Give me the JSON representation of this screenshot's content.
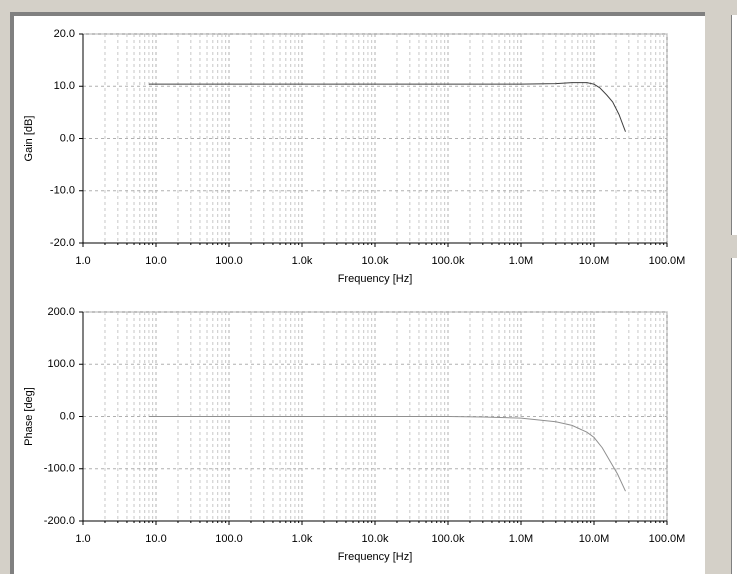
{
  "chart_data": [
    {
      "type": "line",
      "xscale": "log",
      "ylabel": "Gain [dB]",
      "xlabel": "Frequency [Hz]",
      "color": "#404040",
      "grid": true,
      "minor_grid": true,
      "x": [
        8,
        100,
        1000,
        10000,
        100000,
        1000000,
        3000000,
        5000000,
        8000000,
        10000000,
        12000000,
        15000000,
        18000000,
        22000000,
        27000000
      ],
      "values": [
        10.4,
        10.4,
        10.4,
        10.4,
        10.4,
        10.4,
        10.5,
        10.7,
        10.7,
        10.4,
        9.7,
        8.3,
        7.0,
        4.6,
        1.3
      ],
      "xlim": [
        1,
        100000000
      ],
      "xticks": [
        {
          "value": 1,
          "label": "1.0"
        },
        {
          "value": 10,
          "label": "10.0"
        },
        {
          "value": 100,
          "label": "100.0"
        },
        {
          "value": 1000,
          "label": "1.0k"
        },
        {
          "value": 10000,
          "label": "10.0k"
        },
        {
          "value": 100000,
          "label": "100.0k"
        },
        {
          "value": 1000000,
          "label": "1.0M"
        },
        {
          "value": 10000000,
          "label": "10.0M"
        },
        {
          "value": 100000000,
          "label": "100.0M"
        }
      ],
      "ylim": [
        -20,
        20
      ],
      "yticks": [
        {
          "value": -20,
          "label": "-20.0"
        },
        {
          "value": -10,
          "label": "-10.0"
        },
        {
          "value": 0,
          "label": "0.0"
        },
        {
          "value": 10,
          "label": "10.0"
        },
        {
          "value": 20,
          "label": "20.0"
        }
      ]
    },
    {
      "type": "line",
      "xscale": "log",
      "ylabel": "Phase [deg]",
      "xlabel": "Frequency [Hz]",
      "color": "#909090",
      "grid": true,
      "minor_grid": true,
      "x": [
        8,
        100,
        1000,
        10000,
        100000,
        300000,
        1000000,
        3000000,
        5000000,
        8000000,
        10000000,
        13000000,
        17000000,
        21000000,
        27000000
      ],
      "values": [
        0,
        0,
        0,
        0,
        0,
        -1,
        -3,
        -10,
        -17,
        -30,
        -40,
        -60,
        -88,
        -110,
        -143
      ],
      "xlim": [
        1,
        100000000
      ],
      "xticks": [
        {
          "value": 1,
          "label": "1.0"
        },
        {
          "value": 10,
          "label": "10.0"
        },
        {
          "value": 100,
          "label": "100.0"
        },
        {
          "value": 1000,
          "label": "1.0k"
        },
        {
          "value": 10000,
          "label": "10.0k"
        },
        {
          "value": 100000,
          "label": "100.0k"
        },
        {
          "value": 1000000,
          "label": "1.0M"
        },
        {
          "value": 10000000,
          "label": "10.0M"
        },
        {
          "value": 100000000,
          "label": "100.0M"
        }
      ],
      "ylim": [
        -200,
        200
      ],
      "yticks": [
        {
          "value": -200,
          "label": "-200.0"
        },
        {
          "value": -100,
          "label": "-100.0"
        },
        {
          "value": 0,
          "label": "0.0"
        },
        {
          "value": 100,
          "label": "100.0"
        },
        {
          "value": 200,
          "label": "200.0"
        }
      ]
    }
  ]
}
